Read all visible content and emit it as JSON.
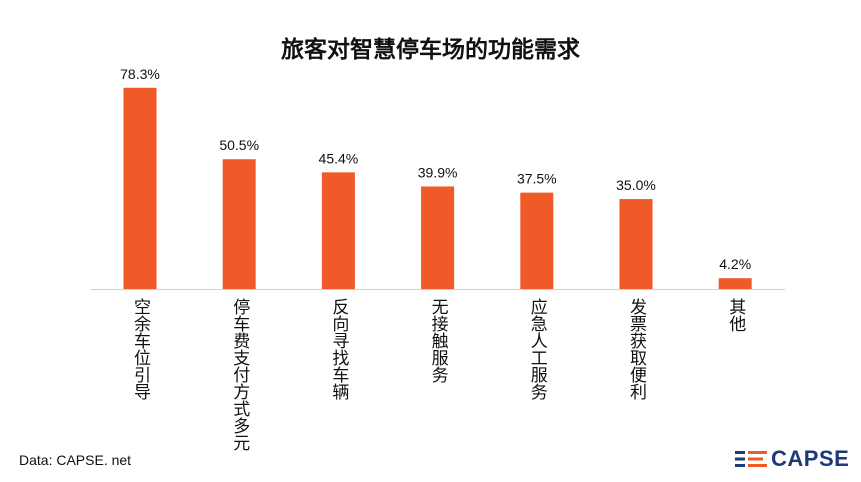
{
  "chart_data": {
    "type": "bar",
    "title": "旅客对智慧停车场的功能需求",
    "categories": [
      "空余车位引导",
      "停车费支付方式多元",
      "反向寻找车辆",
      "无接触服务",
      "应急人工服务",
      "发票获取便利",
      "其他"
    ],
    "values": [
      78.3,
      50.5,
      45.4,
      39.9,
      37.5,
      35.0,
      4.2
    ],
    "value_labels": [
      "78.3%",
      "50.5%",
      "45.4%",
      "39.9%",
      "37.5%",
      "35.0%",
      "4.2%"
    ],
    "xlabel": "",
    "ylabel": "",
    "ylim": [
      0,
      100
    ],
    "grid": false,
    "bar_color": "#f05a28"
  },
  "footer": {
    "source": "Data: CAPSE. net",
    "logo_text": "CAPSE"
  },
  "colors": {
    "logo_blue": "#1d3a78",
    "logo_orange": "#f05a28"
  }
}
